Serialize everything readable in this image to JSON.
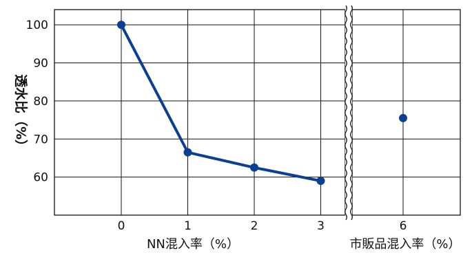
{
  "chart_data": [
    {
      "type": "line",
      "ylabel": "透水比（%）",
      "xlabel": "NN混入率（%）",
      "x": [
        0,
        1,
        2,
        3
      ],
      "xticks": [
        "0",
        "1",
        "2",
        "3"
      ],
      "series": [
        {
          "values": [
            100,
            66.5,
            62.5,
            59
          ]
        }
      ],
      "ylim": [
        50,
        104
      ],
      "yticks": [
        "60",
        "70",
        "80",
        "90",
        "100"
      ],
      "grid": true,
      "line_color": "#0a3f96"
    },
    {
      "type": "scatter",
      "xlabel": "市販品混入率（%）",
      "x": [
        6
      ],
      "xticks": [
        "6"
      ],
      "series": [
        {
          "values": [
            75.5
          ]
        }
      ],
      "ylim": [
        50,
        104
      ],
      "grid": true,
      "marker_color": "#0a3f96"
    }
  ]
}
